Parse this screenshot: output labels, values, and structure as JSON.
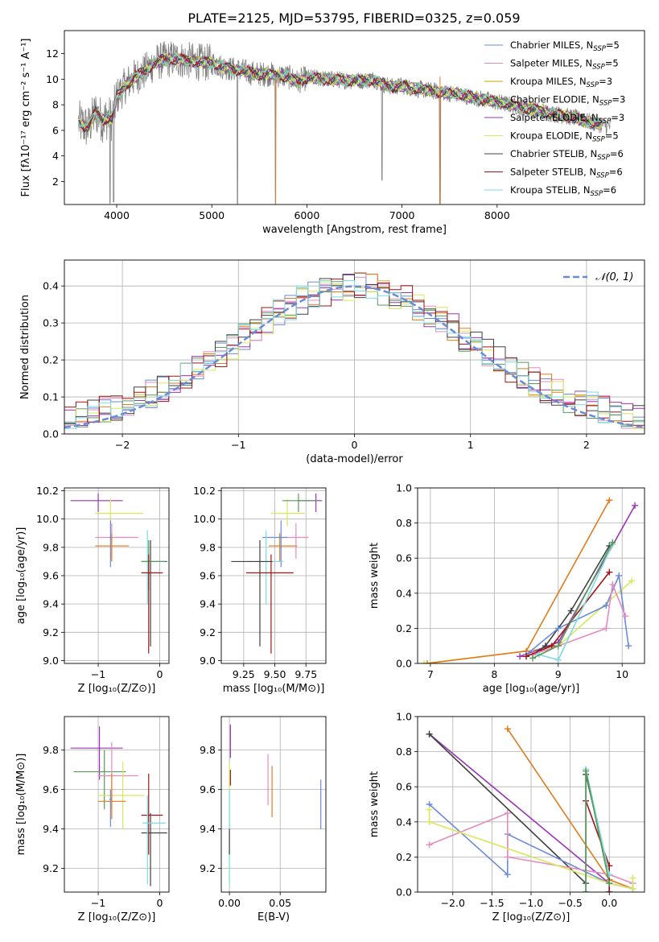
{
  "title": "PLATE=2125, MJD=53795, FIBERID=0325, z=0.059",
  "colors": {
    "Chabrier MILES": "#6a8bd9",
    "Salpeter MILES": "#e58bc0",
    "Kroupa MILES": "#c9a400",
    "Chabrier ELODIE": "#5a9a5a",
    "Salpeter ELODIE": "#9a35b5",
    "Kroupa ELODIE": "#d8e85a",
    "Chabrier STELIB": "#404040",
    "Salpeter STELIB": "#a01515",
    "Kroupa STELIB": "#7adbe0",
    "data": "#808080",
    "orange": "#e07b20",
    "gauss": "#6a8bd9"
  },
  "chart_data": [
    {
      "type": "line",
      "name": "spectrum",
      "xlabel": "wavelength [Angstrom, rest frame]",
      "ylabel": "Flux [fλ10⁻¹⁷ erg cm⁻² s⁻¹ A⁻¹]",
      "xlim": [
        3450,
        9550
      ],
      "ylim": [
        0.2,
        13.8
      ],
      "xticks": [
        4000,
        5000,
        6000,
        7000,
        8000
      ],
      "yticks": [
        2,
        4,
        6,
        8,
        10,
        12
      ],
      "continuum": [
        [
          3600,
          6.6
        ],
        [
          3700,
          6.2
        ],
        [
          3780,
          7.4
        ],
        [
          3850,
          6.8
        ],
        [
          3900,
          7.0
        ],
        [
          3950,
          6.9
        ],
        [
          4000,
          8.6
        ],
        [
          4100,
          9.6
        ],
        [
          4200,
          10.2
        ],
        [
          4300,
          10.6
        ],
        [
          4400,
          11.3
        ],
        [
          4500,
          11.5
        ],
        [
          4600,
          11.6
        ],
        [
          4700,
          11.5
        ],
        [
          4800,
          11.4
        ],
        [
          4900,
          11.3
        ],
        [
          5000,
          11.3
        ],
        [
          5100,
          11.0
        ],
        [
          5200,
          10.8
        ],
        [
          5300,
          10.7
        ],
        [
          5400,
          10.5
        ],
        [
          5500,
          10.4
        ],
        [
          5600,
          10.4
        ],
        [
          5700,
          10.3
        ],
        [
          5800,
          10.2
        ],
        [
          5900,
          9.8
        ],
        [
          6000,
          10.1
        ],
        [
          6100,
          10.1
        ],
        [
          6200,
          10.0
        ],
        [
          6300,
          10.0
        ],
        [
          6400,
          9.9
        ],
        [
          6500,
          9.9
        ],
        [
          6600,
          9.9
        ],
        [
          6700,
          10.0
        ],
        [
          6800,
          9.6
        ],
        [
          6900,
          9.4
        ],
        [
          7000,
          9.5
        ],
        [
          7100,
          9.3
        ],
        [
          7200,
          9.2
        ],
        [
          7300,
          9.1
        ],
        [
          7400,
          9.0
        ],
        [
          7600,
          8.8
        ],
        [
          7800,
          8.5
        ],
        [
          8000,
          8.2
        ],
        [
          8200,
          7.9
        ],
        [
          8400,
          7.6
        ],
        [
          8600,
          7.3
        ],
        [
          8800,
          7.0
        ],
        [
          9000,
          6.6
        ],
        [
          9200,
          6.3
        ]
      ],
      "dips": [
        [
          3930,
          0.3
        ],
        [
          3968,
          0.4
        ],
        [
          5270,
          0.2
        ],
        [
          5670,
          0.3
        ],
        [
          6790,
          2.1
        ],
        [
          7400,
          0.3
        ]
      ],
      "legend": [
        {
          "label": "Chabrier MILES, N",
          "sub": "SSP",
          "suffix": "=5"
        },
        {
          "label": "Salpeter MILES, N",
          "sub": "SSP",
          "suffix": "=5"
        },
        {
          "label": "Kroupa MILES, N",
          "sub": "SSP",
          "suffix": "=3"
        },
        {
          "label": "Chabrier ELODIE, N",
          "sub": "SSP",
          "suffix": "=3"
        },
        {
          "label": "Salpeter ELODIE, N",
          "sub": "SSP",
          "suffix": "=3"
        },
        {
          "label": "Kroupa ELODIE, N",
          "sub": "SSP",
          "suffix": "=5"
        },
        {
          "label": "Chabrier STELIB, N",
          "sub": "SSP",
          "suffix": "=6"
        },
        {
          "label": "Salpeter STELIB, N",
          "sub": "SSP",
          "suffix": "=6"
        },
        {
          "label": "Kroupa STELIB, N",
          "sub": "SSP",
          "suffix": "=6"
        }
      ]
    },
    {
      "type": "bar",
      "name": "residuals",
      "xlabel": "(data-model)/error",
      "ylabel": "Normed distribution",
      "xlim": [
        -2.5,
        2.5
      ],
      "ylim": [
        0,
        0.47
      ],
      "xticks": [
        -2,
        -1,
        0,
        1,
        2
      ],
      "yticks": [
        0.0,
        0.1,
        0.2,
        0.3,
        0.4
      ],
      "legend": "𝒩(0, 1)",
      "bin_width": 0.1
    },
    {
      "type": "scatter",
      "name": "age-vs-Z",
      "xlabel": "Z [log₁₀(Z/Z⊙)]",
      "ylabel": "age  [log₁₀(age/yr)]",
      "xlim": [
        -1.55,
        0.15
      ],
      "ylim": [
        8.98,
        10.22
      ],
      "xticks": [
        -1,
        0
      ],
      "yticks": [
        9.0,
        9.2,
        9.4,
        9.6,
        9.8,
        10.0,
        10.2
      ],
      "points": [
        {
          "s": "Salpeter ELODIE",
          "x": -1.0,
          "y": 10.13,
          "ex": [
            -1.45,
            -0.6
          ],
          "ey": [
            10.05,
            10.18
          ]
        },
        {
          "s": "Kroupa ELODIE",
          "x": -0.8,
          "y": 10.04,
          "ex": [
            -1.05,
            -0.27
          ],
          "ey": [
            9.95,
            10.14
          ]
        },
        {
          "s": "Salpeter MILES",
          "x": -0.78,
          "y": 9.87,
          "ex": [
            -1.05,
            -0.35
          ],
          "ey": [
            9.72,
            9.97
          ]
        },
        {
          "s": "Kroupa MILES",
          "x": -0.78,
          "y": 9.81,
          "ex": [
            -1.05,
            -0.5
          ],
          "ey": [
            9.7,
            9.9
          ]
        },
        {
          "s": "Chabrier MILES",
          "x": -0.8,
          "y": 9.87,
          "ex": [
            -0.82,
            -0.78
          ],
          "ey": [
            9.66,
            9.99
          ]
        },
        {
          "s": "Kroupa STELIB",
          "x": -0.2,
          "y": 9.7,
          "ex": [
            -0.28,
            0.1
          ],
          "ey": [
            9.4,
            9.92
          ]
        },
        {
          "s": "Chabrier STELIB",
          "x": -0.15,
          "y": 9.7,
          "ex": [
            -0.3,
            0.12
          ],
          "ey": [
            9.1,
            9.85
          ]
        },
        {
          "s": "Chabrier ELODIE",
          "x": -0.18,
          "y": 9.7,
          "ex": [
            -0.3,
            0.1
          ],
          "ey": [
            9.5,
            9.85
          ]
        },
        {
          "s": "Salpeter STELIB",
          "x": -0.18,
          "y": 9.62,
          "ex": [
            -0.3,
            0.05
          ],
          "ey": [
            9.05,
            9.75
          ]
        }
      ]
    },
    {
      "type": "scatter",
      "name": "age-vs-mass",
      "xlabel": "mass [log₁₀(M/M⊙)]",
      "ylabel": "",
      "xlim": [
        9.07,
        9.91
      ],
      "ylim": [
        8.98,
        10.22
      ],
      "xticks": [
        9.25,
        9.5,
        9.75
      ],
      "yticks": [
        9.0,
        9.2,
        9.4,
        9.6,
        9.8,
        10.0,
        10.2
      ],
      "points": [
        {
          "s": "Salpeter ELODIE",
          "x": 9.83,
          "y": 10.13,
          "ex": [
            9.68,
            9.88
          ],
          "ey": [
            10.05,
            10.18
          ]
        },
        {
          "s": "Kroupa ELODIE",
          "x": 9.6,
          "y": 10.04,
          "ex": [
            9.47,
            9.74
          ],
          "ey": [
            9.95,
            10.14
          ]
        },
        {
          "s": "Chabrier ELODIE",
          "x": 9.69,
          "y": 10.13,
          "ex": [
            9.56,
            9.84
          ],
          "ey": [
            10.05,
            10.18
          ]
        },
        {
          "s": "Salpeter MILES",
          "x": 9.67,
          "y": 9.87,
          "ex": [
            9.53,
            9.77
          ],
          "ey": [
            9.72,
            9.97
          ]
        },
        {
          "s": "Kroupa MILES",
          "x": 9.54,
          "y": 9.81,
          "ex": [
            9.45,
            9.68
          ],
          "ey": [
            9.7,
            9.9
          ]
        },
        {
          "s": "Chabrier MILES",
          "x": 9.55,
          "y": 9.87,
          "ex": [
            9.4,
            9.6
          ],
          "ey": [
            9.66,
            9.99
          ]
        },
        {
          "s": "Kroupa STELIB",
          "x": 9.43,
          "y": 9.7,
          "ex": [
            9.28,
            9.57
          ],
          "ey": [
            9.4,
            9.92
          ]
        },
        {
          "s": "Chabrier STELIB",
          "x": 9.38,
          "y": 9.7,
          "ex": [
            9.15,
            9.48
          ],
          "ey": [
            9.1,
            9.85
          ]
        },
        {
          "s": "Salpeter STELIB",
          "x": 9.47,
          "y": 9.62,
          "ex": [
            9.27,
            9.65
          ],
          "ey": [
            9.05,
            9.75
          ]
        }
      ]
    },
    {
      "type": "line",
      "name": "weight-vs-age",
      "xlabel": "age  [log₁₀(age/yr)]",
      "ylabel": "mass weight",
      "xlim": [
        6.8,
        10.35
      ],
      "ylim": [
        0,
        1.0
      ],
      "xticks": [
        7,
        8,
        9,
        10
      ],
      "yticks": [
        0.0,
        0.2,
        0.4,
        0.6,
        0.8,
        1.0
      ],
      "series": [
        {
          "s": "Kroupa ELODIE",
          "x": [
            6.9,
            8.5,
            9.0,
            10.15
          ],
          "y": [
            0.0,
            0.07,
            0.1,
            0.47
          ]
        },
        {
          "s": "Kroupa MILES",
          "x": [
            6.95,
            8.5,
            9.8
          ],
          "y": [
            0.0,
            0.07,
            0.93
          ]
        },
        {
          "s": "Salpeter ELODIE",
          "x": [
            8.4,
            9.0,
            10.2
          ],
          "y": [
            0.04,
            0.12,
            0.9
          ]
        },
        {
          "s": "Chabrier STELIB",
          "x": [
            8.6,
            8.8,
            9.2,
            9.8
          ],
          "y": [
            0.05,
            0.1,
            0.3,
            0.67
          ]
        },
        {
          "s": "Chabrier MILES",
          "x": [
            8.5,
            9.0,
            9.75,
            9.95,
            10.1
          ],
          "y": [
            0.05,
            0.2,
            0.33,
            0.5,
            0.1
          ]
        },
        {
          "s": "Salpeter MILES",
          "x": [
            8.6,
            9.0,
            9.75,
            9.85,
            10.05
          ],
          "y": [
            0.05,
            0.1,
            0.2,
            0.45,
            0.27
          ]
        },
        {
          "s": "Salpeter STELIB",
          "x": [
            8.5,
            8.9,
            9.8
          ],
          "y": [
            0.04,
            0.1,
            0.52
          ]
        },
        {
          "s": "Kroupa STELIB",
          "x": [
            8.7,
            9.0,
            9.85
          ],
          "y": [
            0.05,
            0.02,
            0.68
          ]
        },
        {
          "s": "Chabrier ELODIE",
          "x": [
            8.6,
            9.0,
            9.85
          ],
          "y": [
            0.03,
            0.1,
            0.69
          ]
        }
      ]
    },
    {
      "type": "scatter",
      "name": "mass-vs-Z",
      "xlabel": "Z [log₁₀(Z/Z⊙)]",
      "ylabel": "mass [log₁₀(M/M⊙)]",
      "xlim": [
        -1.55,
        0.15
      ],
      "ylim": [
        9.08,
        9.97
      ],
      "xticks": [
        -1,
        0
      ],
      "yticks": [
        9.2,
        9.4,
        9.6,
        9.8
      ],
      "points": [
        {
          "s": "Salpeter ELODIE",
          "x": -0.98,
          "y": 9.81,
          "ex": [
            -1.45,
            -0.6
          ],
          "ey": [
            9.65,
            9.92
          ]
        },
        {
          "s": "Chabrier ELODIE",
          "x": -0.9,
          "y": 9.69,
          "ex": [
            -1.4,
            -0.55
          ],
          "ey": [
            9.5,
            9.8
          ]
        },
        {
          "s": "Salpeter MILES",
          "x": -0.78,
          "y": 9.67,
          "ex": [
            -1.0,
            -0.35
          ],
          "ey": [
            9.5,
            9.84
          ]
        },
        {
          "s": "Kroupa ELODIE",
          "x": -0.6,
          "y": 9.57,
          "ex": [
            -1.0,
            -0.25
          ],
          "ey": [
            9.4,
            9.74
          ]
        },
        {
          "s": "Kroupa MILES",
          "x": -0.78,
          "y": 9.54,
          "ex": [
            -1.0,
            -0.55
          ],
          "ey": [
            9.45,
            9.68
          ]
        },
        {
          "s": "Chabrier MILES",
          "x": -0.8,
          "y": 9.55,
          "ex": [
            -0.82,
            -0.78
          ],
          "ey": [
            9.41,
            9.6
          ]
        },
        {
          "s": "Salpeter STELIB",
          "x": -0.18,
          "y": 9.47,
          "ex": [
            -0.3,
            0.05
          ],
          "ey": [
            9.27,
            9.68
          ]
        },
        {
          "s": "Chabrier STELIB",
          "x": -0.15,
          "y": 9.38,
          "ex": [
            -0.3,
            0.12
          ],
          "ey": [
            9.11,
            9.48
          ]
        },
        {
          "s": "Kroupa STELIB",
          "x": -0.2,
          "y": 9.43,
          "ex": [
            -0.28,
            0.1
          ],
          "ey": [
            9.12,
            9.57
          ]
        }
      ]
    },
    {
      "type": "scatter",
      "name": "mass-vs-ebv",
      "xlabel": "E(B-V)",
      "ylabel": "",
      "xlim": [
        -0.008,
        0.095
      ],
      "ylim": [
        9.08,
        9.97
      ],
      "xticks": [
        0.0,
        0.05
      ],
      "yticks": [
        9.2,
        9.4,
        9.6,
        9.8
      ],
      "points": [
        {
          "s": "Chabrier MILES",
          "x": 0.09,
          "ey": [
            9.4,
            9.65
          ]
        },
        {
          "s": "Salpeter MILES",
          "x": 0.038,
          "ey": [
            9.52,
            9.78
          ]
        },
        {
          "s": "Kroupa MILES",
          "x": 0.042,
          "ey": [
            9.46,
            9.72
          ]
        },
        {
          "s": "Salpeter ELODIE",
          "x": 0.001,
          "ey": [
            9.76,
            9.93
          ]
        },
        {
          "s": "Kroupa ELODIE",
          "x": 0.0,
          "ey": [
            9.4,
            9.74
          ]
        },
        {
          "s": "Salpeter STELIB",
          "x": 0.001,
          "ey": [
            9.62,
            9.7
          ]
        },
        {
          "s": "Kroupa STELIB",
          "x": 0.0,
          "ey": [
            9.12,
            9.6
          ]
        },
        {
          "s": "Chabrier STELIB",
          "x": 0.0,
          "ey": [
            9.27,
            9.4
          ]
        }
      ]
    },
    {
      "type": "line",
      "name": "weight-vs-Z",
      "xlabel": "Z [log₁₀(Z/Z⊙)]",
      "ylabel": "mass weight",
      "xlim": [
        -2.45,
        0.45
      ],
      "ylim": [
        0,
        1.0
      ],
      "xticks": [
        -2.0,
        -1.5,
        -1.0,
        -0.5,
        0.0
      ],
      "yticks": [
        0.0,
        0.2,
        0.4,
        0.6,
        0.8,
        1.0
      ],
      "series": [
        {
          "s": "Salpeter ELODIE",
          "x": [
            -2.3,
            0.0,
            0.3
          ],
          "y": [
            0.9,
            0.05,
            0.02
          ]
        },
        {
          "s": "Chabrier STELIB",
          "x": [
            -2.3,
            -0.3,
            -0.3,
            0.0,
            0.0
          ],
          "y": [
            0.9,
            0.05,
            0.67,
            0.1,
            0.0
          ]
        },
        {
          "s": "Kroupa MILES",
          "x": [
            -1.3,
            0.0,
            0.3
          ],
          "y": [
            0.93,
            0.07,
            0.02
          ]
        },
        {
          "s": "Chabrier MILES",
          "x": [
            -2.3,
            -1.3,
            -1.3,
            0.0,
            0.3
          ],
          "y": [
            0.5,
            0.1,
            0.33,
            0.05,
            0.02
          ]
        },
        {
          "s": "Salpeter MILES",
          "x": [
            -2.3,
            -1.3,
            -1.3,
            0.0,
            0.3
          ],
          "y": [
            0.27,
            0.45,
            0.2,
            0.1,
            0.05
          ]
        },
        {
          "s": "Kroupa ELODIE",
          "x": [
            -2.3,
            -2.3,
            0.0,
            0.3,
            0.3
          ],
          "y": [
            0.47,
            0.4,
            0.05,
            0.02,
            0.08
          ]
        },
        {
          "s": "Salpeter STELIB",
          "x": [
            -0.3,
            0.0,
            0.0
          ],
          "y": [
            0.52,
            0.15,
            0.0
          ]
        },
        {
          "s": "Kroupa STELIB",
          "x": [
            -0.3,
            -0.3,
            0.0
          ],
          "y": [
            0.0,
            0.7,
            0.1
          ]
        },
        {
          "s": "Chabrier ELODIE",
          "x": [
            -0.3,
            -0.3,
            0.0
          ],
          "y": [
            0.0,
            0.69,
            0.05
          ]
        }
      ]
    }
  ]
}
